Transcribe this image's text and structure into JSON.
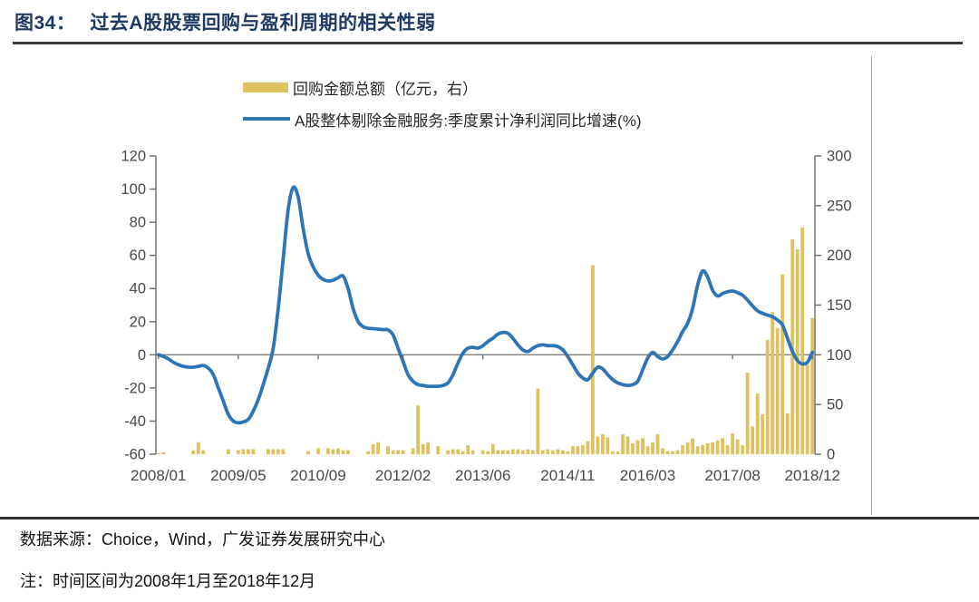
{
  "title": {
    "prefix": "图34：",
    "text": "过去A股股票回购与盈利周期的相关性弱"
  },
  "legend": [
    {
      "label": "回购金额总额（亿元，右）",
      "color": "#DFC25F",
      "type": "bar"
    },
    {
      "label": "A股整体剔除金融服务:季度累计净利润同比增速(%)",
      "color": "#2E75B6",
      "type": "line"
    }
  ],
  "footer": {
    "source": "数据来源：Choice，Wind，广发证券发展研究中心",
    "note": "注：时间区间为2008年1月至2018年12月"
  },
  "colors": {
    "title": "#1F3A63",
    "bar": "#DFC25F",
    "line": "#2E75B6",
    "axis_text": "#484848",
    "axis_line": "#6a6a6a",
    "zero_line": "#7f7f7f",
    "rule": "#3a3a3a"
  },
  "chart_data": {
    "type": "combo",
    "title": "过去A股股票回购与盈利周期的相关性弱",
    "x_axis": {
      "months": 132,
      "first": "2008/01",
      "last": "2018/12",
      "tick_labels": [
        "2008/01",
        "2009/05",
        "2010/09",
        "2012/02",
        "2013/06",
        "2014/11",
        "2016/03",
        "2017/08",
        "2018/12"
      ],
      "tick_month_index": [
        0,
        16,
        32,
        49,
        65,
        82,
        98,
        115,
        131
      ]
    },
    "left_axis": {
      "min": -60,
      "max": 120,
      "step": 20,
      "ticks": [
        120,
        100,
        80,
        60,
        40,
        20,
        0,
        -20,
        -40,
        -60
      ]
    },
    "right_axis": {
      "min": 0,
      "max": 300,
      "step": 50,
      "ticks": [
        300,
        250,
        200,
        150,
        100,
        50,
        0
      ]
    },
    "grid": false,
    "legend_position": "top",
    "series": [
      {
        "name": "回购金额总额（亿元，右）",
        "type": "bar",
        "axis": "right",
        "color": "#DFC25F",
        "values": [
          1,
          2,
          0,
          0,
          0,
          0,
          0,
          4,
          12,
          4,
          0,
          0,
          0,
          0,
          5,
          0,
          4,
          5,
          5,
          5,
          0,
          0,
          5,
          5,
          5,
          5,
          0,
          0,
          0,
          0,
          3,
          0,
          6,
          0,
          6,
          5,
          6,
          4,
          4,
          0,
          0,
          0,
          3,
          10,
          12,
          0,
          8,
          4,
          4,
          4,
          0,
          6,
          49,
          10,
          12,
          0,
          8,
          0,
          4,
          5,
          5,
          3,
          9,
          4,
          0,
          4,
          3,
          10,
          4,
          4,
          4,
          5,
          5,
          4,
          5,
          4,
          66,
          4,
          5,
          4,
          5,
          4,
          3,
          8,
          8,
          9,
          13,
          190,
          18,
          20,
          17,
          3,
          3,
          20,
          18,
          11,
          14,
          16,
          8,
          12,
          20,
          6,
          3,
          3,
          4,
          9,
          12,
          16,
          8,
          9,
          11,
          12,
          14,
          16,
          9,
          21,
          15,
          9,
          82,
          28,
          61,
          40,
          115,
          143,
          127,
          181,
          41,
          216,
          206,
          228,
          90,
          137
        ]
      },
      {
        "name": "A股整体剔除金融服务:季度累计净利润同比增速(%)",
        "type": "line",
        "axis": "left",
        "color": "#2E75B6",
        "values": [
          0,
          -1,
          -2.5,
          -4.5,
          -6,
          -7,
          -7.5,
          -7.5,
          -7,
          -6.5,
          -8,
          -12,
          -20,
          -28,
          -36,
          -40,
          -41,
          -40.5,
          -39,
          -34,
          -27,
          -18,
          -8,
          4,
          28,
          58,
          88,
          101,
          95,
          76,
          61,
          53,
          48,
          45.5,
          44.5,
          45,
          46.5,
          47.5,
          40,
          28,
          20,
          17,
          16,
          15.8,
          15.5,
          15.2,
          15,
          12,
          4,
          -4,
          -12,
          -16,
          -18,
          -18.5,
          -19,
          -19,
          -19,
          -18.5,
          -17,
          -12,
          -5,
          1,
          4,
          4.5,
          4,
          5.5,
          8,
          10,
          12.5,
          13.5,
          13,
          10,
          6,
          3,
          2,
          4,
          5.5,
          6,
          5.5,
          5.5,
          5,
          3,
          -1,
          -6,
          -11,
          -14,
          -15,
          -11,
          -7.5,
          -8.5,
          -12,
          -15,
          -17,
          -18,
          -18.5,
          -18,
          -16,
          -9,
          -2,
          1.5,
          -1,
          -2.5,
          -1,
          3,
          8,
          14,
          19,
          28,
          42,
          50.5,
          47,
          39,
          35.5,
          37,
          38,
          38.5,
          37.5,
          36,
          33,
          29.5,
          26.5,
          25,
          24,
          23,
          21,
          18,
          10,
          2,
          -3.5,
          -5.5,
          -4.5,
          1.5
        ]
      }
    ]
  }
}
